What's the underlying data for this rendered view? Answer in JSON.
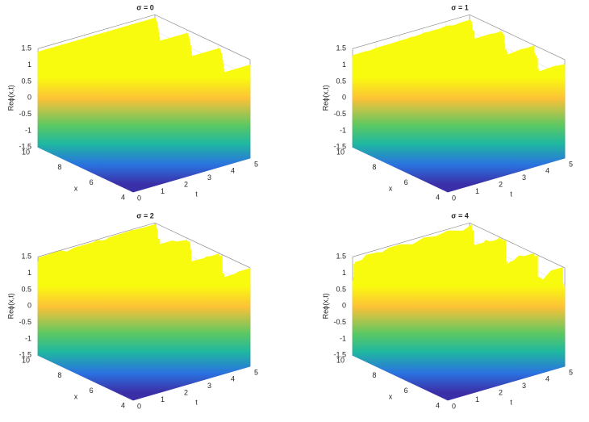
{
  "chart_data": [
    {
      "type": "surface",
      "title": "σ = 0",
      "xlabel": "x",
      "ylabel": "t",
      "zlabel": "Reϕ(x,t)",
      "xlim": [
        4,
        10
      ],
      "xticks": [
        4,
        6,
        8,
        10
      ],
      "ylim": [
        0,
        5
      ],
      "yticks": [
        0,
        1,
        2,
        3,
        4,
        5
      ],
      "zlim": [
        -1.5,
        1.5
      ],
      "zticks": [
        -1.5,
        -1,
        -0.5,
        0,
        0.5,
        1,
        1.5
      ],
      "grid": true
    },
    {
      "type": "surface",
      "title": "σ = 1",
      "xlabel": "x",
      "ylabel": "t",
      "zlabel": "Reϕ(x,t)",
      "xlim": [
        4,
        10
      ],
      "xticks": [
        4,
        6,
        8,
        10
      ],
      "ylim": [
        0,
        5
      ],
      "yticks": [
        0,
        1,
        2,
        3,
        4,
        5
      ],
      "zlim": [
        -1.5,
        1.5
      ],
      "zticks": [
        -1.5,
        -1,
        -0.5,
        0,
        0.5,
        1,
        1.5
      ],
      "grid": true
    },
    {
      "type": "surface",
      "title": "σ = 2",
      "xlabel": "x",
      "ylabel": "t",
      "zlabel": "Reϕ(x,t)",
      "xlim": [
        4,
        10
      ],
      "xticks": [
        4,
        6,
        8,
        10
      ],
      "ylim": [
        0,
        5
      ],
      "yticks": [
        0,
        1,
        2,
        3,
        4,
        5
      ],
      "zlim": [
        -1.5,
        1.5
      ],
      "zticks": [
        -1.5,
        -1,
        -0.5,
        0,
        0.5,
        1,
        1.5
      ],
      "grid": true
    },
    {
      "type": "surface",
      "title": "σ = 4",
      "xlabel": "x",
      "ylabel": "t",
      "zlabel": "Reϕ(x,t)",
      "xlim": [
        4,
        10
      ],
      "xticks": [
        4,
        6,
        8,
        10
      ],
      "ylim": [
        0,
        5
      ],
      "yticks": [
        0,
        1,
        2,
        3,
        4,
        5
      ],
      "zlim": [
        -1.5,
        1.5
      ],
      "zticks": [
        -1.5,
        -1,
        -0.5,
        0,
        0.5,
        1,
        1.5
      ],
      "grid": true
    }
  ]
}
